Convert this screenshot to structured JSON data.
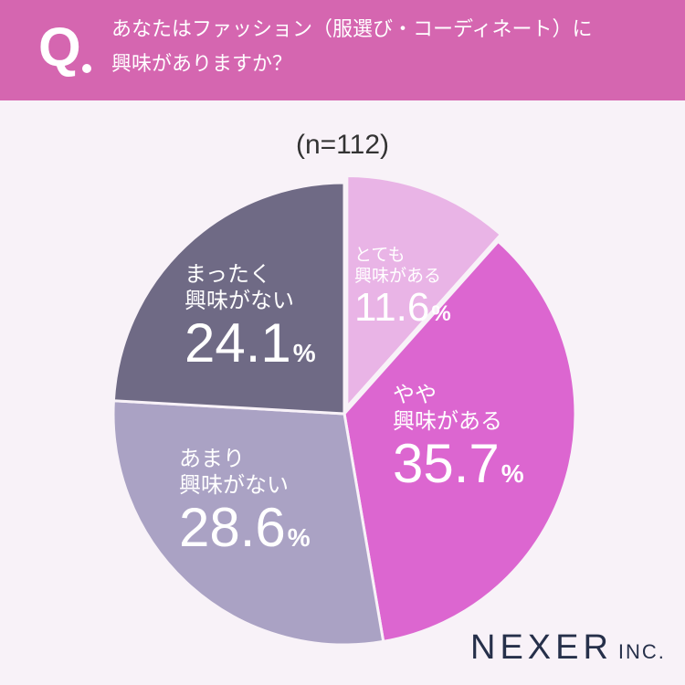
{
  "header": {
    "q_mark": "Q",
    "question_line1": "あなたはファッション（服選び・コーディネート）に",
    "question_line2": "興味がありますか？"
  },
  "sample_size": "(n=112)",
  "logo": {
    "main": "NEXER",
    "suffix": "INC."
  },
  "colors": {
    "header": "#d566b0",
    "very": "#e9b4e6",
    "somewhat": "#dc66d0",
    "not_much": "#aaa2c4",
    "not_at_all": "#6f6a85"
  },
  "chart_data": {
    "type": "pie",
    "start_angle_deg": 0,
    "direction": "clockwise",
    "exploded_slice": "とても興味がある",
    "slices": [
      {
        "label_line1": "とても",
        "label_line2": "興味がある",
        "value": 11.6,
        "value_text": "11.6",
        "unit": "%",
        "color": "#e9b4e6"
      },
      {
        "label_line1": "やや",
        "label_line2": "興味がある",
        "value": 35.7,
        "value_text": "35.7",
        "unit": "%",
        "color": "#dc66d0"
      },
      {
        "label_line1": "あまり",
        "label_line2": "興味がない",
        "value": 28.6,
        "value_text": "28.6",
        "unit": "%",
        "color": "#aaa2c4"
      },
      {
        "label_line1": "まったく",
        "label_line2": "興味がない",
        "value": 24.1,
        "value_text": "24.1",
        "unit": "%",
        "color": "#6f6a85"
      }
    ]
  }
}
